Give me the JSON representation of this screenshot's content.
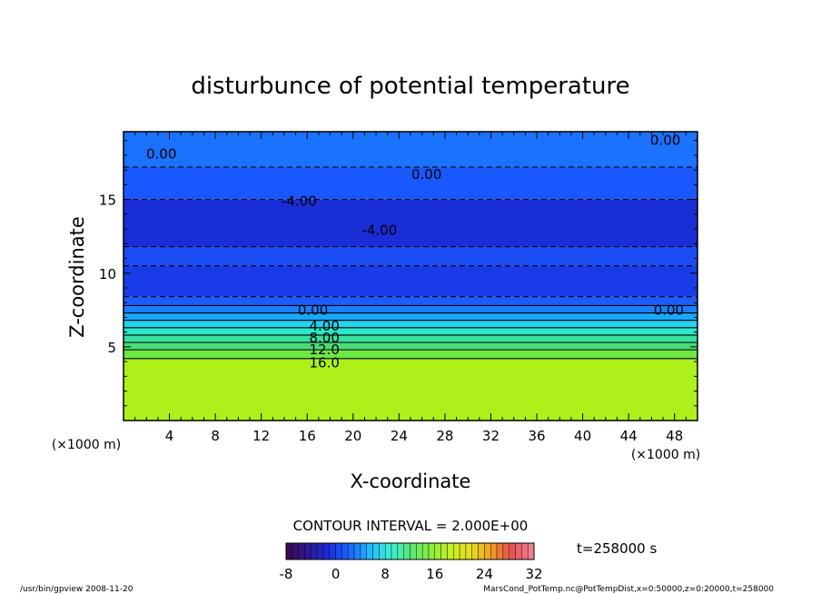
{
  "chart_data": {
    "type": "heatmap",
    "title": "disturbunce of potential temperature",
    "xlabel": "X-coordinate",
    "ylabel": "Z-coordinate",
    "x_unit": "(×1000 m)",
    "y_unit": "(×1000 m)",
    "xlim": [
      0,
      50
    ],
    "ylim": [
      0,
      19.6
    ],
    "xticks": [
      4,
      8,
      12,
      16,
      20,
      24,
      28,
      32,
      36,
      40,
      44,
      48
    ],
    "yticks": [
      5,
      10,
      15
    ],
    "contour_interval_text": "CONTOUR INTERVAL = 2.000E+00",
    "time_text": "t=258000 s",
    "colorbar": {
      "min": -8,
      "max": 32,
      "ticks": [
        -8,
        0,
        8,
        16,
        24,
        32
      ],
      "colors": [
        "#3a0a55",
        "#2a1a9a",
        "#1a2ee0",
        "#1a66ff",
        "#22b8ff",
        "#3cf0d8",
        "#5ce676",
        "#86f040",
        "#c4f020",
        "#e8e020",
        "#f0a020",
        "#e85050",
        "#f08090"
      ]
    },
    "layers": [
      {
        "z_bottom": 0.0,
        "z_top": 4.2,
        "value": 19,
        "color": "#aef01a"
      },
      {
        "z_bottom": 4.2,
        "z_top": 4.8,
        "value": 16,
        "color": "#6ce842"
      },
      {
        "z_bottom": 4.8,
        "z_top": 5.3,
        "value": 14,
        "color": "#4adc78"
      },
      {
        "z_bottom": 5.3,
        "z_top": 5.8,
        "value": 12,
        "color": "#38e0a0"
      },
      {
        "z_bottom": 5.8,
        "z_top": 6.3,
        "value": 10,
        "color": "#2ce8c8"
      },
      {
        "z_bottom": 6.3,
        "z_top": 6.8,
        "value": 8,
        "color": "#22d4f0"
      },
      {
        "z_bottom": 6.8,
        "z_top": 7.3,
        "value": 6,
        "color": "#1aa8ff"
      },
      {
        "z_bottom": 7.3,
        "z_top": 7.8,
        "value": 4,
        "color": "#1a80ff"
      },
      {
        "z_bottom": 7.8,
        "z_top": 8.4,
        "value": 1,
        "color": "#1a5cff"
      },
      {
        "z_bottom": 8.4,
        "z_top": 10.5,
        "value": -2,
        "color": "#1a3ce8"
      },
      {
        "z_bottom": 10.5,
        "z_top": 11.8,
        "value": -1,
        "color": "#1a4cf4"
      },
      {
        "z_bottom": 11.8,
        "z_top": 15.0,
        "value": -4,
        "color": "#1a2ed8"
      },
      {
        "z_bottom": 15.0,
        "z_top": 17.2,
        "value": -1,
        "color": "#1a58ff"
      },
      {
        "z_bottom": 17.2,
        "z_top": 19.6,
        "value": 0,
        "color": "#1a72ff"
      }
    ],
    "contour_labels": [
      {
        "text": "0.00",
        "x": 3.3,
        "z": 18.1
      },
      {
        "text": "0.00",
        "x": 47.2,
        "z": 19.0
      },
      {
        "text": "0.00",
        "x": 26.4,
        "z": 16.7
      },
      {
        "text": "-4.00",
        "x": 15.3,
        "z": 14.9
      },
      {
        "text": "-4.00",
        "x": 22.3,
        "z": 12.9
      },
      {
        "text": "0.00",
        "x": 16.5,
        "z": 7.5
      },
      {
        "text": "0.00",
        "x": 47.5,
        "z": 7.5
      },
      {
        "text": "4.00",
        "x": 17.5,
        "z": 6.4
      },
      {
        "text": "8.00",
        "x": 17.5,
        "z": 5.6
      },
      {
        "text": "12.0",
        "x": 17.5,
        "z": 4.8
      },
      {
        "text": "16.0",
        "x": 17.5,
        "z": 3.9
      }
    ]
  },
  "footer": {
    "left": "/usr/bin/gpview   2008-11-20",
    "right": "MarsCond_PotTemp.nc@PotTempDist,x=0:50000,z=0:20000,t=258000"
  }
}
